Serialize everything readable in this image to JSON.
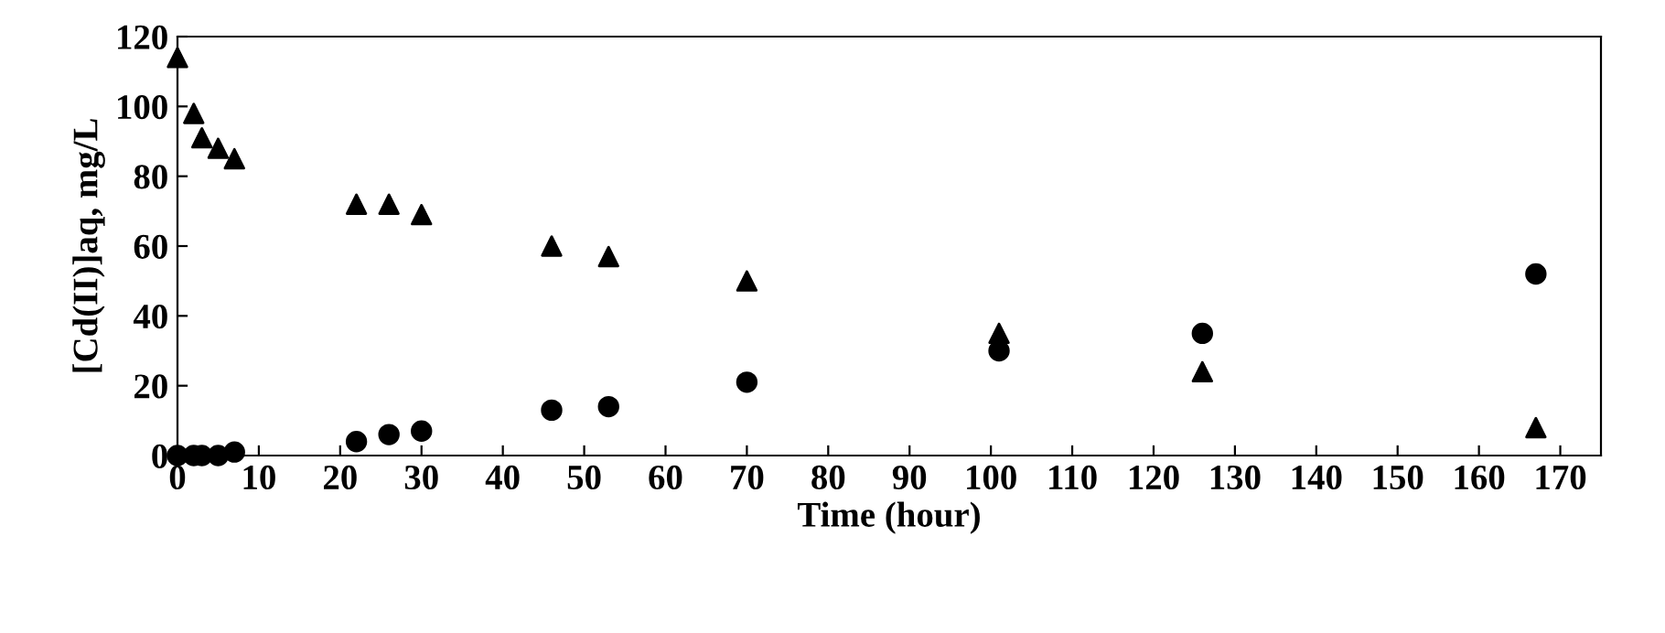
{
  "chart_data": {
    "type": "scatter",
    "xlabel": "Time (hour)",
    "ylabel": "[Cd(II)]aq, mg/L",
    "xlim": [
      0,
      175
    ],
    "xticks": [
      0,
      10,
      20,
      30,
      40,
      50,
      60,
      70,
      80,
      90,
      100,
      110,
      120,
      130,
      140,
      150,
      160,
      170
    ],
    "ylim": [
      0,
      120
    ],
    "yticks": [
      0,
      20,
      40,
      60,
      80,
      100,
      120
    ],
    "grid": false,
    "series": [
      {
        "color": "#000000",
        "marker": "triangle",
        "x": [
          0,
          2,
          3,
          5,
          7,
          22,
          26,
          30,
          46,
          53,
          70,
          101,
          126,
          167
        ],
        "values": [
          114,
          98,
          91,
          88,
          85,
          72,
          72,
          69,
          60,
          57,
          50,
          35,
          24,
          8
        ]
      },
      {
        "color": "#000000",
        "marker": "circle",
        "x": [
          0,
          2,
          3,
          5,
          7,
          22,
          26,
          30,
          46,
          53,
          70,
          101,
          126,
          167
        ],
        "values": [
          0,
          0,
          0,
          0,
          1,
          4,
          6,
          7,
          13,
          14,
          21,
          30,
          35,
          52
        ]
      }
    ]
  }
}
